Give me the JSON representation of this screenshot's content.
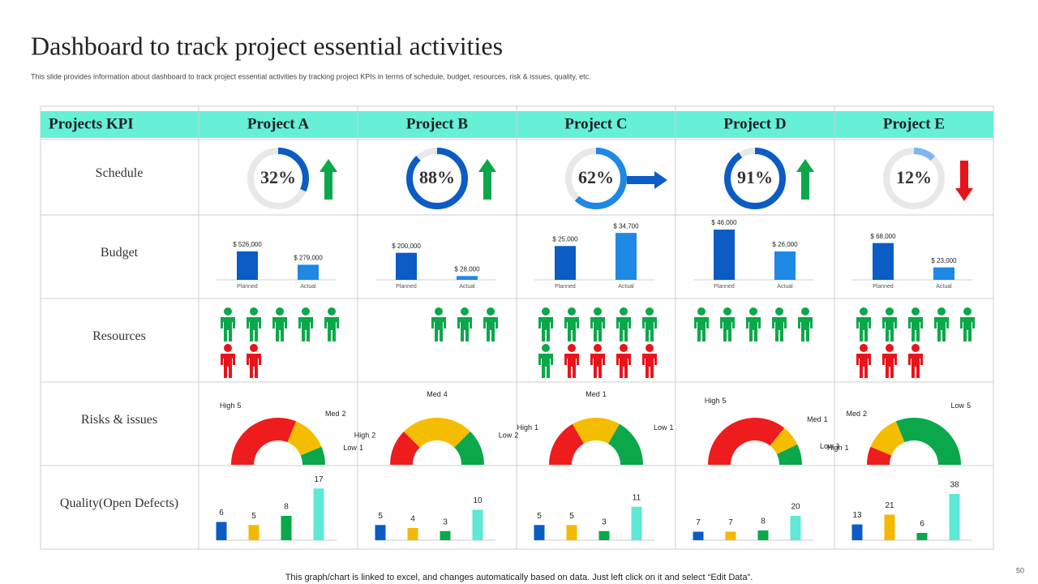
{
  "header": {
    "title": "Dashboard to track project essential activities",
    "subtitle": "This slide provides information about dashboard to track project essential activities by tracking project KPIs  in terms of schedule, budget, resources, risk & issues, quality, etc."
  },
  "table": {
    "columns": [
      "Projects KPI",
      "Project A",
      "Project B",
      "Project C",
      "Project D",
      "Project E"
    ],
    "rows": [
      "Schedule",
      "Budget",
      "Resources",
      "Risks & issues",
      "Quality(Open Defects)"
    ]
  },
  "settings": {
    "ring_track_color": "#e8e8e8",
    "trend_colors": {
      "up": "#0aa84a",
      "right": "#0b5cc4",
      "down": "#e8141b"
    },
    "budget_colors": [
      "#0b5cc4",
      "#1e88e5"
    ],
    "resource_colors": {
      "green": "#0aa84a",
      "red": "#e8141b"
    },
    "risk_colors": [
      "#ee1c1c",
      "#f5bd00",
      "#0aa84a"
    ],
    "quality_colors": [
      "#0b5cc4",
      "#f5b800",
      "#0aa84a",
      "#5ee8d6"
    ]
  },
  "projects": [
    {
      "schedule": {
        "value": 32,
        "label": "32%",
        "color": "#0b5cc4",
        "trend": "up"
      },
      "budget": {
        "categories": [
          "Planned",
          "Actual"
        ],
        "values": [
          526000,
          279000
        ],
        "value_labels": [
          "$ 526,000",
          "$ 279,000"
        ],
        "ylim": [
          0,
          1050000
        ]
      },
      "resources": {
        "green": 5,
        "red": 2
      },
      "risks": {
        "categories": [
          "High",
          "Med",
          "Low"
        ],
        "values": [
          5,
          2,
          1
        ]
      },
      "quality": {
        "values": [
          6,
          5,
          8,
          17
        ],
        "ylim": [
          0,
          20
        ]
      }
    },
    {
      "schedule": {
        "value": 88,
        "label": "88%",
        "color": "#0b5cc4",
        "trend": "up"
      },
      "budget": {
        "categories": [
          "Planned",
          "Actual"
        ],
        "values": [
          200000,
          28000
        ],
        "value_labels": [
          "$ 200,000",
          "$ 28,000"
        ],
        "ylim": [
          0,
          420000
        ]
      },
      "resources": {
        "green": 3,
        "red": 0
      },
      "risks": {
        "categories": [
          "High",
          "Med",
          "Low"
        ],
        "values": [
          2,
          4,
          2
        ]
      },
      "quality": {
        "values": [
          5,
          4,
          3,
          10
        ],
        "ylim": [
          0,
          20
        ]
      }
    },
    {
      "schedule": {
        "value": 62,
        "label": "62%",
        "color": "#1e88e5",
        "trend": "right"
      },
      "budget": {
        "categories": [
          "Planned",
          "Actual"
        ],
        "values": [
          25000,
          34700
        ],
        "value_labels": [
          "$ 25,000",
          "$ 34,700"
        ],
        "ylim": [
          0,
          42000
        ]
      },
      "resources": {
        "green": 6,
        "red": 4
      },
      "risks": {
        "categories": [
          "High",
          "Med",
          "Low"
        ],
        "values": [
          1,
          1,
          1
        ]
      },
      "quality": {
        "values": [
          5,
          5,
          3,
          11
        ],
        "ylim": [
          0,
          20
        ]
      }
    },
    {
      "schedule": {
        "value": 91,
        "label": "91%",
        "color": "#0b5cc4",
        "trend": "up"
      },
      "budget": {
        "categories": [
          "Planned",
          "Actual"
        ],
        "values": [
          46000,
          26000
        ],
        "value_labels": [
          "$ 46,000",
          "$ 26,000"
        ],
        "ylim": [
          0,
          52000
        ]
      },
      "resources": {
        "green": 5,
        "red": 0
      },
      "risks": {
        "categories": [
          "High",
          "Med",
          "Low"
        ],
        "values": [
          5,
          1,
          1
        ]
      },
      "quality": {
        "values": [
          7,
          7,
          8,
          20
        ],
        "ylim": [
          0,
          50
        ]
      }
    },
    {
      "schedule": {
        "value": 12,
        "label": "12%",
        "color": "#7fb5f0",
        "trend": "down"
      },
      "budget": {
        "categories": [
          "Planned",
          "Actual"
        ],
        "values": [
          68000,
          23000
        ],
        "value_labels": [
          "$ 68,000",
          "$ 23,000"
        ],
        "ylim": [
          0,
          105000
        ]
      },
      "resources": {
        "green": 5,
        "red": 3
      },
      "risks": {
        "categories": [
          "High",
          "Med",
          "Low"
        ],
        "values": [
          1,
          2,
          5
        ]
      },
      "quality": {
        "values": [
          13,
          21,
          6,
          38
        ],
        "ylim": [
          0,
          50
        ]
      }
    }
  ],
  "footer": {
    "note": "This graph/chart is linked to excel,  and changes automatically based on data. Just left click on it and select “Edit Data”.",
    "page": 50
  }
}
